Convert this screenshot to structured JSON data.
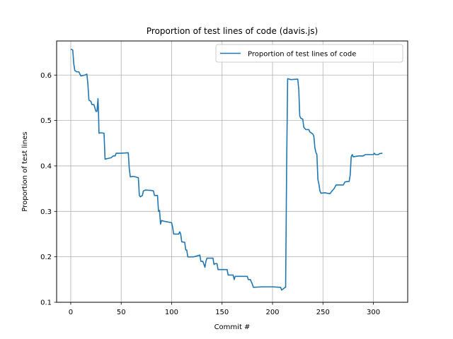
{
  "chart_data": {
    "type": "line",
    "title": "Proportion of test lines of code (davis.js)",
    "xlabel": "Commit #",
    "ylabel": "Proportion of test lines",
    "xlim": [
      -14,
      334
    ],
    "ylim": [
      0.1,
      0.675
    ],
    "xticks": [
      0,
      50,
      100,
      150,
      200,
      250,
      300
    ],
    "yticks": [
      0.1,
      0.2,
      0.3,
      0.4,
      0.5,
      0.6
    ],
    "ytick_labels": [
      "0.1",
      "0.2",
      "0.3",
      "0.4",
      "0.5",
      "0.6"
    ],
    "grid": true,
    "legend_position": "top-right",
    "series": [
      {
        "name": "Proportion of test lines of code",
        "color": "#1f77b4",
        "points": [
          [
            0,
            0.657
          ],
          [
            2,
            0.655
          ],
          [
            3,
            0.625
          ],
          [
            4,
            0.61
          ],
          [
            6,
            0.607
          ],
          [
            8,
            0.607
          ],
          [
            10,
            0.598
          ],
          [
            14,
            0.6
          ],
          [
            16,
            0.602
          ],
          [
            17,
            0.58
          ],
          [
            18,
            0.545
          ],
          [
            20,
            0.542
          ],
          [
            21,
            0.535
          ],
          [
            23,
            0.535
          ],
          [
            24,
            0.527
          ],
          [
            25,
            0.52
          ],
          [
            26,
            0.52
          ],
          [
            27,
            0.548
          ],
          [
            27.5,
            0.52
          ],
          [
            28,
            0.472
          ],
          [
            30,
            0.473
          ],
          [
            33,
            0.472
          ],
          [
            34,
            0.415
          ],
          [
            38,
            0.417
          ],
          [
            40,
            0.418
          ],
          [
            42,
            0.422
          ],
          [
            44,
            0.422
          ],
          [
            45,
            0.428
          ],
          [
            50,
            0.428
          ],
          [
            57,
            0.429
          ],
          [
            58,
            0.395
          ],
          [
            59,
            0.376
          ],
          [
            62,
            0.377
          ],
          [
            64,
            0.376
          ],
          [
            67,
            0.374
          ],
          [
            68,
            0.335
          ],
          [
            69,
            0.332
          ],
          [
            71,
            0.335
          ],
          [
            72,
            0.345
          ],
          [
            74,
            0.347
          ],
          [
            80,
            0.346
          ],
          [
            82,
            0.345
          ],
          [
            83,
            0.335
          ],
          [
            86,
            0.335
          ],
          [
            87,
            0.3
          ],
          [
            88,
            0.302
          ],
          [
            89,
            0.272
          ],
          [
            90,
            0.28
          ],
          [
            93,
            0.278
          ],
          [
            98,
            0.276
          ],
          [
            100,
            0.275
          ],
          [
            101,
            0.265
          ],
          [
            102,
            0.25
          ],
          [
            107,
            0.25
          ],
          [
            108,
            0.255
          ],
          [
            109,
            0.25
          ],
          [
            110,
            0.233
          ],
          [
            113,
            0.232
          ],
          [
            114,
            0.215
          ],
          [
            115,
            0.215
          ],
          [
            116,
            0.2
          ],
          [
            122,
            0.2
          ],
          [
            125,
            0.202
          ],
          [
            128,
            0.204
          ],
          [
            129,
            0.19
          ],
          [
            131,
            0.19
          ],
          [
            133,
            0.177
          ],
          [
            134,
            0.19
          ],
          [
            135,
            0.197
          ],
          [
            141,
            0.197
          ],
          [
            142,
            0.183
          ],
          [
            143,
            0.185
          ],
          [
            145,
            0.185
          ],
          [
            146,
            0.172
          ],
          [
            155,
            0.172
          ],
          [
            156,
            0.16
          ],
          [
            161,
            0.16
          ],
          [
            162,
            0.15
          ],
          [
            163,
            0.157
          ],
          [
            175,
            0.157
          ],
          [
            176,
            0.15
          ],
          [
            178,
            0.15
          ],
          [
            180,
            0.14
          ],
          [
            181,
            0.133
          ],
          [
            190,
            0.134
          ],
          [
            200,
            0.134
          ],
          [
            208,
            0.133
          ],
          [
            209,
            0.127
          ],
          [
            211,
            0.13
          ],
          [
            212,
            0.132
          ],
          [
            213,
            0.133
          ],
          [
            214,
            0.4
          ],
          [
            215,
            0.592
          ],
          [
            218,
            0.59
          ],
          [
            225,
            0.591
          ],
          [
            226,
            0.57
          ],
          [
            227,
            0.51
          ],
          [
            228,
            0.505
          ],
          [
            230,
            0.503
          ],
          [
            231,
            0.485
          ],
          [
            233,
            0.48
          ],
          [
            236,
            0.48
          ],
          [
            237,
            0.475
          ],
          [
            240,
            0.47
          ],
          [
            241,
            0.465
          ],
          [
            242,
            0.44
          ],
          [
            243,
            0.43
          ],
          [
            244,
            0.425
          ],
          [
            245,
            0.37
          ],
          [
            246,
            0.36
          ],
          [
            247,
            0.345
          ],
          [
            248,
            0.34
          ],
          [
            252,
            0.341
          ],
          [
            254,
            0.34
          ],
          [
            257,
            0.339
          ],
          [
            259,
            0.345
          ],
          [
            261,
            0.35
          ],
          [
            263,
            0.358
          ],
          [
            270,
            0.358
          ],
          [
            272,
            0.365
          ],
          [
            276,
            0.366
          ],
          [
            277,
            0.38
          ],
          [
            278,
            0.42
          ],
          [
            279,
            0.425
          ],
          [
            280,
            0.42
          ],
          [
            285,
            0.422
          ],
          [
            290,
            0.422
          ],
          [
            292,
            0.425
          ],
          [
            300,
            0.425
          ],
          [
            301,
            0.428
          ],
          [
            302,
            0.425
          ],
          [
            305,
            0.425
          ],
          [
            306,
            0.427
          ],
          [
            309,
            0.428
          ]
        ]
      }
    ]
  }
}
